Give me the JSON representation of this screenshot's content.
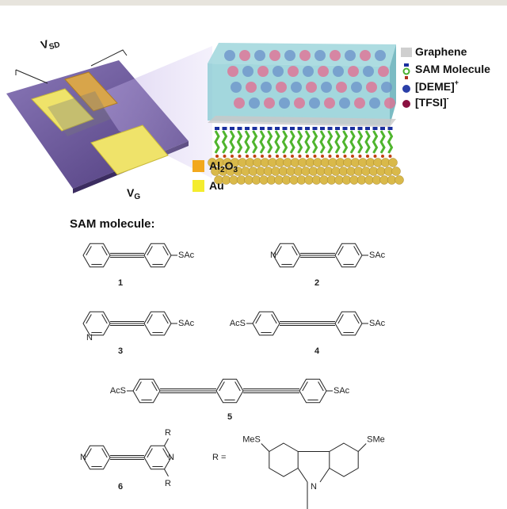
{
  "device": {
    "vsd": {
      "base": "V",
      "sub": "SD"
    },
    "vg": {
      "base": "V",
      "sub": "G"
    }
  },
  "materials": [
    {
      "parts": [
        "Al",
        "2",
        "O",
        "3"
      ],
      "color": "#f2a81d"
    },
    {
      "parts": [
        "Au"
      ],
      "color": "#f4ec2e"
    }
  ],
  "legend": [
    {
      "text": "Graphene"
    },
    {
      "text": "SAM Molecule"
    },
    {
      "text": "[DEME]",
      "sup": "+"
    },
    {
      "text": "[TFSI]",
      "sup": "-"
    }
  ],
  "section_title": "SAM molecule:",
  "molecules": [
    {
      "label": "1",
      "groups": [
        "SAc"
      ]
    },
    {
      "label": "2",
      "groups": [
        "N",
        "SAc"
      ]
    },
    {
      "label": "3",
      "groups": [
        "N",
        "SAc"
      ]
    },
    {
      "label": "4",
      "groups": [
        "AcS",
        "SAc"
      ]
    },
    {
      "label": "5",
      "groups": [
        "AcS",
        "SAc"
      ]
    },
    {
      "label": "6",
      "groups": [
        "N",
        "N",
        "R",
        "R"
      ]
    }
  ],
  "r_definition": {
    "prefix": "R =",
    "groups": [
      "MeS",
      "SMe",
      "N"
    ]
  }
}
